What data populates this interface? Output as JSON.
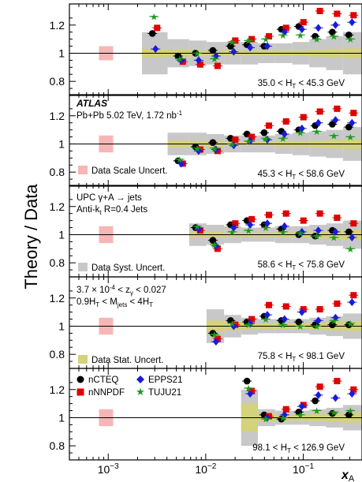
{
  "figure": {
    "y_axis_label": "Theory / Data",
    "x_axis_label": "x",
    "x_axis_label_sub": "A"
  },
  "annotations": {
    "experiment": "ATLAS",
    "dataset": "Pb+Pb 5.02 TeV, 1.72 nb",
    "dataset_sup": "-1",
    "process": "UPC γ+A → jets",
    "jets": "Anti-k",
    "jets_sub": "t",
    "jets_tail": " R=0.4 Jets",
    "cut1_a": "3.7 × 10",
    "cut1_exp": "-4",
    "cut1_b": " < z",
    "cut1_sub": "γ",
    "cut1_c": " < 0.027",
    "cut2": "0.9H",
    "cut2_sub": "T",
    "cut2_b": " < M",
    "cut2_sub2": "jets",
    "cut2_c": " < 4H",
    "cut2_sub3": "T"
  },
  "legend_uncertainties": [
    {
      "label": "Data Scale Uncert.",
      "color": "#f6b6b6"
    },
    {
      "label": "Data Syst. Uncert.",
      "color": "#c8c8c8"
    },
    {
      "label": "Data Stat. Uncert.",
      "color": "#d4d27a"
    }
  ],
  "chart_data": {
    "type": "scatter",
    "x_scale": "log",
    "x_range": [
      0.0004,
      0.4
    ],
    "y_range": [
      0.7,
      1.35
    ],
    "x_ticks": [
      {
        "value": 0.001,
        "base": "10",
        "exp": "−3"
      },
      {
        "value": 0.01,
        "base": "10",
        "exp": "−2"
      },
      {
        "value": 0.1,
        "base": "10",
        "exp": "−1"
      }
    ],
    "y_ticks": [
      0.8,
      1,
      1.2
    ],
    "scale_uncert_x": 0.00095,
    "series": [
      {
        "name": "nCTEQ",
        "color": "#000000",
        "marker": "circle"
      },
      {
        "name": "nNNPDF",
        "color": "#e00000",
        "marker": "square"
      },
      {
        "name": "EPPS21",
        "color": "#1a1adc",
        "marker": "diamond"
      },
      {
        "name": "TUJU21",
        "color": "#1a9a1a",
        "marker": "star"
      }
    ],
    "x_points": [
      0.003,
      0.0055,
      0.0083,
      0.0125,
      0.019,
      0.028,
      0.042,
      0.063,
      0.095,
      0.14,
      0.21,
      0.31
    ],
    "panels": [
      {
        "range_text": "35.0 < H",
        "range_sub": "T",
        "range_tail": " < 45.3 GeV",
        "scale_unc": 0.05,
        "first_bin": 0,
        "syst": [
          0.15,
          0.1,
          0.09,
          0.08,
          0.08,
          0.08,
          0.07,
          0.07,
          0.08,
          0.1,
          0.12,
          0.15
        ],
        "stat": [
          0.03,
          0.025,
          0.02,
          0.02,
          0.02,
          0.02,
          0.02,
          0.02,
          0.02,
          0.025,
          0.03,
          0.035
        ],
        "values": {
          "nCTEQ": [
            1.14,
            0.98,
            1.0,
            1.02,
            1.05,
            1.06,
            1.05,
            1.17,
            1.19,
            1.12,
            1.15,
            1.13
          ],
          "nNNPDF": [
            1.18,
            0.94,
            0.92,
            0.91,
            1.09,
            1.1,
            1.12,
            1.18,
            1.22,
            1.3,
            1.28,
            1.27
          ],
          "EPPS21": [
            1.03,
            0.95,
            0.95,
            0.98,
            1.01,
            1.04,
            1.05,
            1.15,
            1.17,
            1.18,
            1.2,
            1.22
          ],
          "TUJU21": [
            1.26,
            0.96,
            1.0,
            0.96,
            1.08,
            1.09,
            1.1,
            1.13,
            1.13,
            1.1,
            1.12,
            1.1
          ]
        }
      },
      {
        "range_text": "45.3 < H",
        "range_sub": "T",
        "range_tail": " < 58.6 GeV",
        "scale_unc": 0.06,
        "first_bin": 1,
        "syst": [
          0,
          0.08,
          0.08,
          0.07,
          0.06,
          0.06,
          0.06,
          0.07,
          0.08,
          0.09,
          0.1,
          0.12
        ],
        "stat": [
          0,
          0.025,
          0.02,
          0.02,
          0.015,
          0.015,
          0.015,
          0.02,
          0.02,
          0.025,
          0.03,
          0.035
        ],
        "values": {
          "nCTEQ": [
            0,
            0.88,
            0.98,
            1.01,
            1.04,
            1.07,
            1.08,
            1.09,
            1.1,
            1.13,
            1.14,
            1.12
          ],
          "nNNPDF": [
            0,
            0.86,
            0.96,
            0.95,
            1.03,
            1.05,
            1.13,
            1.16,
            1.19,
            1.23,
            1.25,
            1.22
          ],
          "EPPS21": [
            0,
            0.86,
            0.95,
            0.96,
            0.99,
            1.02,
            1.03,
            1.07,
            1.11,
            1.15,
            1.17,
            1.15
          ],
          "TUJU21": [
            0,
            0.89,
            0.97,
            0.97,
            1.0,
            1.02,
            1.04,
            1.04,
            1.08,
            1.09,
            1.06,
            1.05
          ]
        }
      },
      {
        "range_text": "58.6 < H",
        "range_sub": "T",
        "range_tail": " < 75.8 GeV",
        "scale_unc": 0.06,
        "first_bin": 2,
        "syst": [
          0,
          0,
          0.08,
          0.07,
          0.06,
          0.05,
          0.05,
          0.06,
          0.06,
          0.07,
          0.08,
          0.1
        ],
        "stat": [
          0,
          0,
          0.02,
          0.02,
          0.015,
          0.015,
          0.015,
          0.02,
          0.02,
          0.025,
          0.03,
          0.035
        ],
        "values": {
          "nCTEQ": [
            0,
            0,
            1.05,
            0.96,
            1.07,
            1.1,
            1.07,
            1.04,
            1.0,
            0.99,
            1.03,
            1.02
          ],
          "nNNPDF": [
            0,
            0,
            1.03,
            0.9,
            1.08,
            1.11,
            1.14,
            1.15,
            1.1,
            1.15,
            1.12,
            1.08
          ],
          "EPPS21": [
            0,
            0,
            1.04,
            0.92,
            1.05,
            1.07,
            1.08,
            1.06,
            1.02,
            1.03,
            1.02,
            0.98
          ],
          "TUJU21": [
            0,
            0,
            1.06,
            0.93,
            1.02,
            1.03,
            1.05,
            1.02,
            1.01,
            0.99,
            0.98,
            0.9
          ]
        }
      },
      {
        "range_text": "75.8 < H",
        "range_sub": "T",
        "range_tail": " < 98.1 GeV",
        "scale_unc": 0.06,
        "first_bin": 3,
        "syst": [
          0,
          0,
          0,
          0.12,
          0.08,
          0.06,
          0.05,
          0.05,
          0.05,
          0.06,
          0.07,
          0.09
        ],
        "stat": [
          0,
          0,
          0,
          0.04,
          0.03,
          0.02,
          0.02,
          0.02,
          0.02,
          0.025,
          0.03,
          0.035
        ],
        "values": {
          "nCTEQ": [
            0,
            0,
            0,
            0.95,
            1.04,
            1.03,
            1.07,
            1.04,
            1.03,
            1.01,
            1.01,
            1.01
          ],
          "nNNPDF": [
            0,
            0,
            0,
            0.91,
            1.01,
            1.05,
            1.15,
            1.14,
            1.12,
            1.12,
            1.16,
            1.22
          ],
          "EPPS21": [
            0,
            0,
            0,
            0.89,
            1.0,
            1.02,
            1.08,
            1.05,
            1.1,
            1.04,
            1.06,
            1.17
          ],
          "TUJU21": [
            0,
            0,
            0,
            0.94,
            1.02,
            1.01,
            1.05,
            1.01,
            1.0,
            1.0,
            1.04,
            1.02
          ]
        }
      },
      {
        "range_text": "98.1 < H",
        "range_sub": "T",
        "range_tail": " < 126.9 GeV",
        "scale_unc": 0.06,
        "first_bin": 5,
        "syst": [
          0,
          0,
          0,
          0,
          0,
          0.2,
          0.06,
          0.05,
          0.05,
          0.06,
          0.07,
          0.09
        ],
        "stat": [
          0,
          0,
          0,
          0,
          0,
          0.1,
          0.03,
          0.02,
          0.02,
          0.025,
          0.03,
          0.035
        ],
        "values": {
          "nCTEQ": [
            0,
            0,
            0,
            0,
            0,
            1.26,
            1.02,
            0.99,
            1.04,
            1.12,
            1.03,
            1.02
          ],
          "nNNPDF": [
            0,
            0,
            0,
            0,
            0,
            1.19,
            1.01,
            1.06,
            1.09,
            1.22,
            1.26,
            1.2
          ],
          "EPPS21": [
            0,
            0,
            0,
            0,
            0,
            1.17,
            1.0,
            1.02,
            1.08,
            1.16,
            1.14,
            1.17
          ],
          "TUJU21": [
            0,
            0,
            0,
            0,
            0,
            1.21,
            0.99,
            1.0,
            1.02,
            1.05,
            1.04,
            1.05
          ]
        }
      }
    ]
  }
}
